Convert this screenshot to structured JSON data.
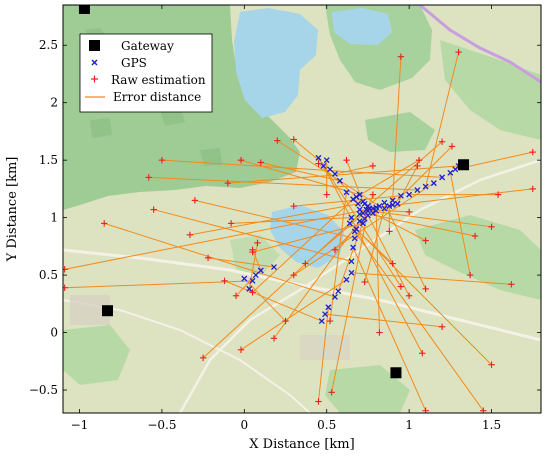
{
  "chart_data": {
    "type": "scatter",
    "title": "",
    "xlabel": "X Distance [km]",
    "ylabel": "Y Distance [km]",
    "xlim": [
      -1.1,
      1.8
    ],
    "ylim": [
      -0.7,
      2.85
    ],
    "x_ticks": [
      -1,
      -0.5,
      0,
      0.5,
      1,
      1.5
    ],
    "x_tick_labels": [
      "−1",
      "−0.5",
      "0",
      "0.5",
      "1",
      "1.5"
    ],
    "y_ticks": [
      -0.5,
      0,
      0.5,
      1,
      1.5,
      2,
      2.5
    ],
    "y_tick_labels": [
      "−0.5",
      "0",
      "0.5",
      "1",
      "1.5",
      "2",
      "2.5"
    ],
    "grid": false,
    "background": "topographic map",
    "legend_position": "top-left",
    "legend": [
      "Gateway",
      "GPS",
      "Raw estimation",
      "Error distance"
    ],
    "colors": {
      "gateway": "#000000",
      "gps": "#1f1fd0",
      "raw_estimation": "#ee1c1c",
      "error_distance": "#f28a1a"
    },
    "gateways": [
      {
        "x": -0.97,
        "y": 2.82
      },
      {
        "x": -0.83,
        "y": 0.19
      },
      {
        "x": 0.92,
        "y": -0.35
      },
      {
        "x": 1.33,
        "y": 1.46
      }
    ],
    "pairs": [
      {
        "gps": [
          0.07,
          0.5
        ],
        "est": [
          -0.05,
          0.32
        ]
      },
      {
        "gps": [
          0.1,
          0.54
        ],
        "est": [
          0.05,
          0.72
        ]
      },
      {
        "gps": [
          0.05,
          0.45
        ],
        "est": [
          -1.09,
          0.39
        ]
      },
      {
        "gps": [
          0.03,
          0.38
        ],
        "est": [
          0.08,
          0.78
        ]
      },
      {
        "gps": [
          0.0,
          0.47
        ],
        "est": [
          0.25,
          0.1
        ]
      },
      {
        "gps": [
          0.18,
          0.57
        ],
        "est": [
          -0.22,
          0.65
        ]
      },
      {
        "gps": [
          0.47,
          0.1
        ],
        "est": [
          -0.12,
          0.45
        ]
      },
      {
        "gps": [
          0.49,
          0.16
        ],
        "est": [
          1.2,
          0.05
        ]
      },
      {
        "gps": [
          0.51,
          0.22
        ],
        "est": [
          0.45,
          -0.6
        ]
      },
      {
        "gps": [
          0.55,
          0.31
        ],
        "est": [
          -0.85,
          0.95
        ]
      },
      {
        "gps": [
          0.57,
          0.36
        ],
        "est": [
          0.78,
          1.2
        ]
      },
      {
        "gps": [
          0.62,
          0.46
        ],
        "est": [
          -0.02,
          -0.15
        ]
      },
      {
        "gps": [
          0.65,
          0.52
        ],
        "est": [
          1.62,
          0.42
        ]
      },
      {
        "gps": [
          0.65,
          0.62
        ],
        "est": [
          -0.55,
          1.07
        ]
      },
      {
        "gps": [
          0.66,
          0.74
        ],
        "est": [
          1.1,
          -0.68
        ]
      },
      {
        "gps": [
          0.67,
          0.82
        ],
        "est": [
          -0.3,
          1.15
        ]
      },
      {
        "gps": [
          0.68,
          0.9
        ],
        "est": [
          1.5,
          -0.28
        ]
      },
      {
        "gps": [
          0.7,
          0.97
        ],
        "est": [
          0.18,
          -0.05
        ]
      },
      {
        "gps": [
          0.72,
          1.04
        ],
        "est": [
          1.4,
          0.84
        ]
      },
      {
        "gps": [
          0.75,
          1.06
        ],
        "est": [
          0.53,
          -0.52
        ]
      },
      {
        "gps": [
          0.78,
          1.08
        ],
        "est": [
          -1.09,
          0.55
        ]
      },
      {
        "gps": [
          0.8,
          1.09
        ],
        "est": [
          1.75,
          1.25
        ]
      },
      {
        "gps": [
          0.82,
          1.1
        ],
        "est": [
          0.2,
          1.67
        ]
      },
      {
        "gps": [
          0.85,
          1.13
        ],
        "est": [
          1.1,
          0.38
        ]
      },
      {
        "gps": [
          0.9,
          1.15
        ],
        "est": [
          0.95,
          2.4
        ]
      },
      {
        "gps": [
          0.95,
          1.19
        ],
        "est": [
          0.3,
          1.1
        ]
      },
      {
        "gps": [
          1.0,
          1.2
        ],
        "est": [
          1.54,
          1.2
        ]
      },
      {
        "gps": [
          1.05,
          1.24
        ],
        "est": [
          -0.58,
          1.35
        ]
      },
      {
        "gps": [
          1.1,
          1.27
        ],
        "est": [
          1.3,
          2.44
        ]
      },
      {
        "gps": [
          1.15,
          1.3
        ],
        "est": [
          0.3,
          0.5
        ]
      },
      {
        "gps": [
          1.2,
          1.35
        ],
        "est": [
          -0.5,
          1.5
        ]
      },
      {
        "gps": [
          1.25,
          1.39
        ],
        "est": [
          1.37,
          0.5
        ]
      },
      {
        "gps": [
          1.28,
          1.42
        ],
        "est": [
          1.75,
          1.57
        ]
      },
      {
        "gps": [
          1.3,
          1.45
        ],
        "est": [
          -0.1,
          1.3
        ]
      },
      {
        "gps": [
          0.58,
          1.32
        ],
        "est": [
          0.1,
          1.48
        ]
      },
      {
        "gps": [
          0.62,
          1.22
        ],
        "est": [
          0.52,
          0.1
        ]
      },
      {
        "gps": [
          0.45,
          1.52
        ],
        "est": [
          0.95,
          0.4
        ]
      },
      {
        "gps": [
          0.48,
          1.45
        ],
        "est": [
          1.08,
          -0.18
        ]
      },
      {
        "gps": [
          0.52,
          1.42
        ],
        "est": [
          0.3,
          1.68
        ]
      },
      {
        "gps": [
          0.5,
          1.5
        ],
        "est": [
          0.5,
          1.2
        ]
      },
      {
        "gps": [
          0.55,
          1.38
        ],
        "est": [
          0.78,
          1.45
        ]
      },
      {
        "gps": [
          0.68,
          1.18
        ],
        "est": [
          1.06,
          1.5
        ]
      },
      {
        "gps": [
          0.7,
          1.2
        ],
        "est": [
          -0.02,
          1.5
        ]
      },
      {
        "gps": [
          0.72,
          1.14
        ],
        "est": [
          0.62,
          1.5
        ]
      },
      {
        "gps": [
          0.75,
          1.1
        ],
        "est": [
          1.2,
          1.66
        ]
      },
      {
        "gps": [
          0.65,
          1.0
        ],
        "est": [
          -0.08,
          0.95
        ]
      },
      {
        "gps": [
          0.7,
          1.07
        ],
        "est": [
          1.5,
          0.92
        ]
      },
      {
        "gps": [
          0.73,
          0.99
        ],
        "est": [
          0.55,
          0.72
        ]
      },
      {
        "gps": [
          0.67,
          0.88
        ],
        "est": [
          1.45,
          -0.68
        ]
      },
      {
        "gps": [
          0.72,
          0.95
        ],
        "est": [
          0.05,
          0.7
        ]
      },
      {
        "gps": [
          0.75,
          1.02
        ],
        "est": [
          1.0,
          0.32
        ]
      },
      {
        "gps": [
          0.78,
          1.04
        ],
        "est": [
          1.1,
          0.8
        ]
      },
      {
        "gps": [
          0.8,
          1.06
        ],
        "est": [
          0.82,
          0.0
        ]
      },
      {
        "gps": [
          0.85,
          1.08
        ],
        "est": [
          0.73,
          0.44
        ]
      },
      {
        "gps": [
          0.88,
          1.1
        ],
        "est": [
          0.88,
          0.88
        ]
      },
      {
        "gps": [
          0.9,
          1.11
        ],
        "est": [
          1.26,
          1.62
        ]
      },
      {
        "gps": [
          0.93,
          1.12
        ],
        "est": [
          1.05,
          1.45
        ]
      },
      {
        "gps": [
          0.74,
          1.07
        ],
        "est": [
          1.0,
          1.05
        ]
      },
      {
        "gps": [
          0.76,
          1.08
        ],
        "est": [
          0.37,
          0.6
        ]
      },
      {
        "gps": [
          0.7,
          1.03
        ],
        "est": [
          -0.25,
          -0.22
        ]
      },
      {
        "gps": [
          0.69,
          1.12
        ],
        "est": [
          -0.33,
          0.85
        ]
      },
      {
        "gps": [
          0.73,
          1.12
        ],
        "est": [
          0.45,
          1.47
        ]
      },
      {
        "gps": [
          0.66,
          1.16
        ],
        "est": [
          0.05,
          0.35
        ]
      },
      {
        "gps": [
          0.64,
          0.95
        ],
        "est": [
          0.9,
          0.6
        ]
      }
    ]
  }
}
